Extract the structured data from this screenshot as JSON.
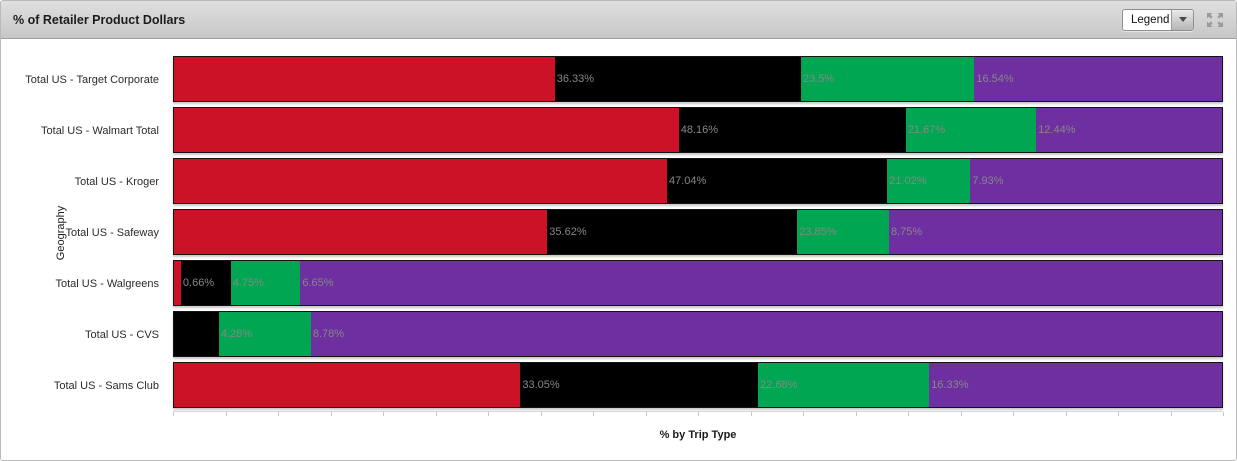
{
  "header": {
    "title": "% of Retailer Product Dollars",
    "legend_dropdown": {
      "value": "Legend"
    }
  },
  "chart_data": {
    "type": "bar",
    "orientation": "horizontal-stacked",
    "title": "% of Retailer Product Dollars",
    "xlabel": "% by Trip Type",
    "ylabel": "Geography",
    "xlim": [
      0,
      100
    ],
    "x_ticks": {
      "interval_pct": 5,
      "labels_shown": false
    },
    "grid": false,
    "legend": {
      "collapsed": true,
      "control_label": "Legend"
    },
    "categories": [
      "Total US - Target Corporate",
      "Total US - Walmart Total",
      "Total US - Kroger",
      "Total US - Safeway",
      "Total US - Walgreens",
      "Total US - CVS",
      "Total US - Sams Club"
    ],
    "series": [
      {
        "name": "series-red",
        "color": "#cc1226",
        "values": [
          36.33,
          48.16,
          47.04,
          35.62,
          0.66,
          0,
          33.05
        ],
        "labels": [
          "36.33%",
          "48.16%",
          "47.04%",
          "35.62%",
          "0.66%",
          null,
          "33.05%"
        ]
      },
      {
        "name": "series-black",
        "color": "#000000",
        "values": [
          23.5,
          21.67,
          21.02,
          23.85,
          4.75,
          4.28,
          22.68
        ],
        "labels": [
          "23.5%",
          "21.67%",
          "21.02%",
          "23.85%",
          "4.75%",
          "4.28%",
          "22.68%"
        ]
      },
      {
        "name": "series-green",
        "color": "#00a651",
        "values": [
          16.54,
          12.44,
          7.93,
          8.75,
          6.65,
          8.78,
          16.33
        ],
        "labels": [
          "16.54%",
          "12.44%",
          "7.93%",
          "8.75%",
          "6.65%",
          "8.78%",
          "16.33%"
        ]
      },
      {
        "name": "series-purple",
        "color": "#6e2fa0",
        "values": [
          23.63,
          17.73,
          24.01,
          31.78,
          87.94,
          86.94,
          27.94
        ],
        "labels": [
          null,
          null,
          null,
          null,
          null,
          null,
          null
        ],
        "values_estimated_remainder": true
      }
    ],
    "value_label_color": "#878787"
  }
}
